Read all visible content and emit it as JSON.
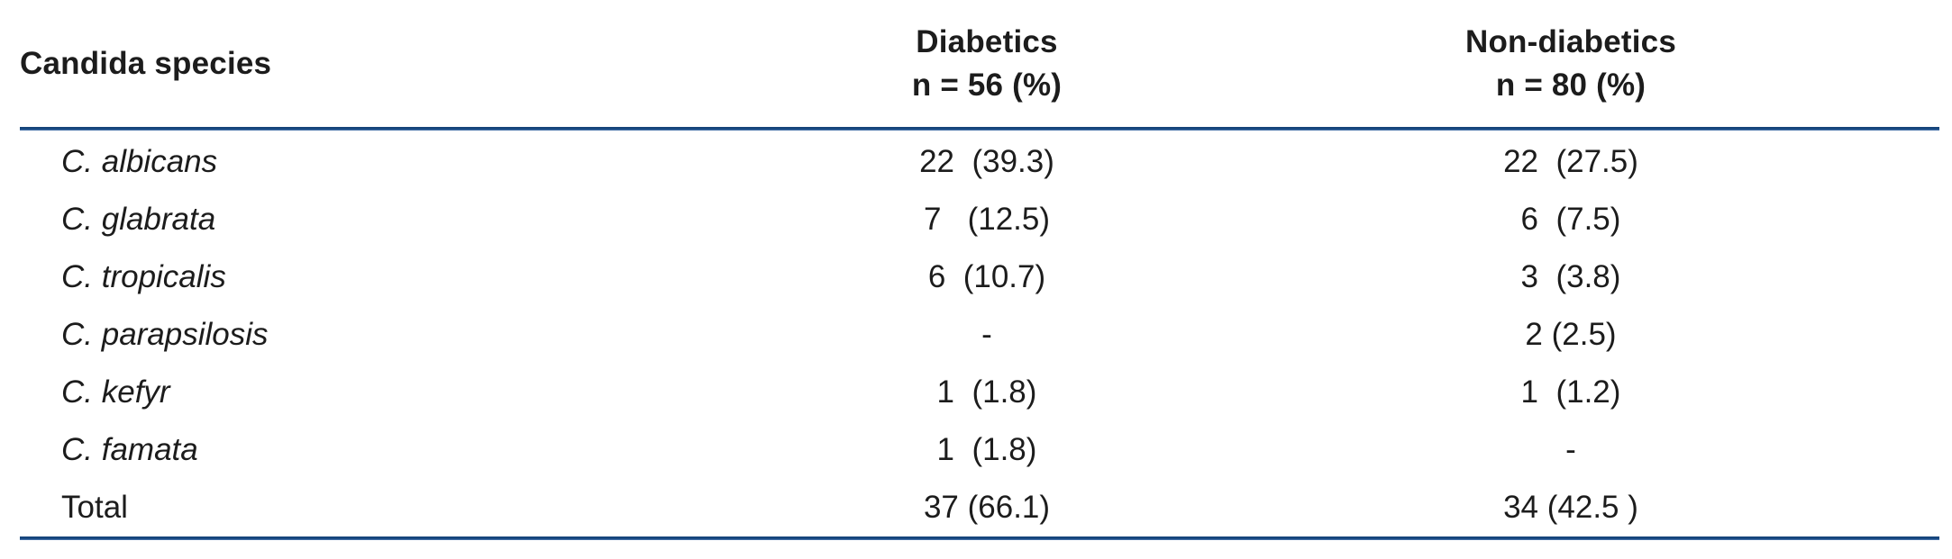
{
  "accent_color": "#1c4d87",
  "text_color": "#1c1c1c",
  "table": {
    "columns": {
      "species": {
        "label": "Candida species"
      },
      "diabetics": {
        "label": "Diabetics",
        "sublabel": "n = 56 (%)"
      },
      "non_diabetics": {
        "label": "Non-diabetics",
        "sublabel": "n = 80 (%)"
      }
    },
    "rows": [
      {
        "species": "C. albicans",
        "diabetics": "22  (39.3)",
        "non_diabetics": "22  (27.5)"
      },
      {
        "species": "C. glabrata",
        "diabetics": "7   (12.5)",
        "non_diabetics": "6  (7.5)"
      },
      {
        "species": "C. tropicalis",
        "diabetics": "6  (10.7)",
        "non_diabetics": "3  (3.8)"
      },
      {
        "species": "C. parapsilosis",
        "diabetics": "-",
        "non_diabetics": "2 (2.5)"
      },
      {
        "species": "C. kefyr",
        "diabetics": "1  (1.8)",
        "non_diabetics": "1  (1.2)"
      },
      {
        "species": "C. famata",
        "diabetics": "1  (1.8)",
        "non_diabetics": "-"
      },
      {
        "species": "Total",
        "diabetics": "37 (66.1)",
        "non_diabetics": "34 (42.5 )"
      }
    ]
  }
}
